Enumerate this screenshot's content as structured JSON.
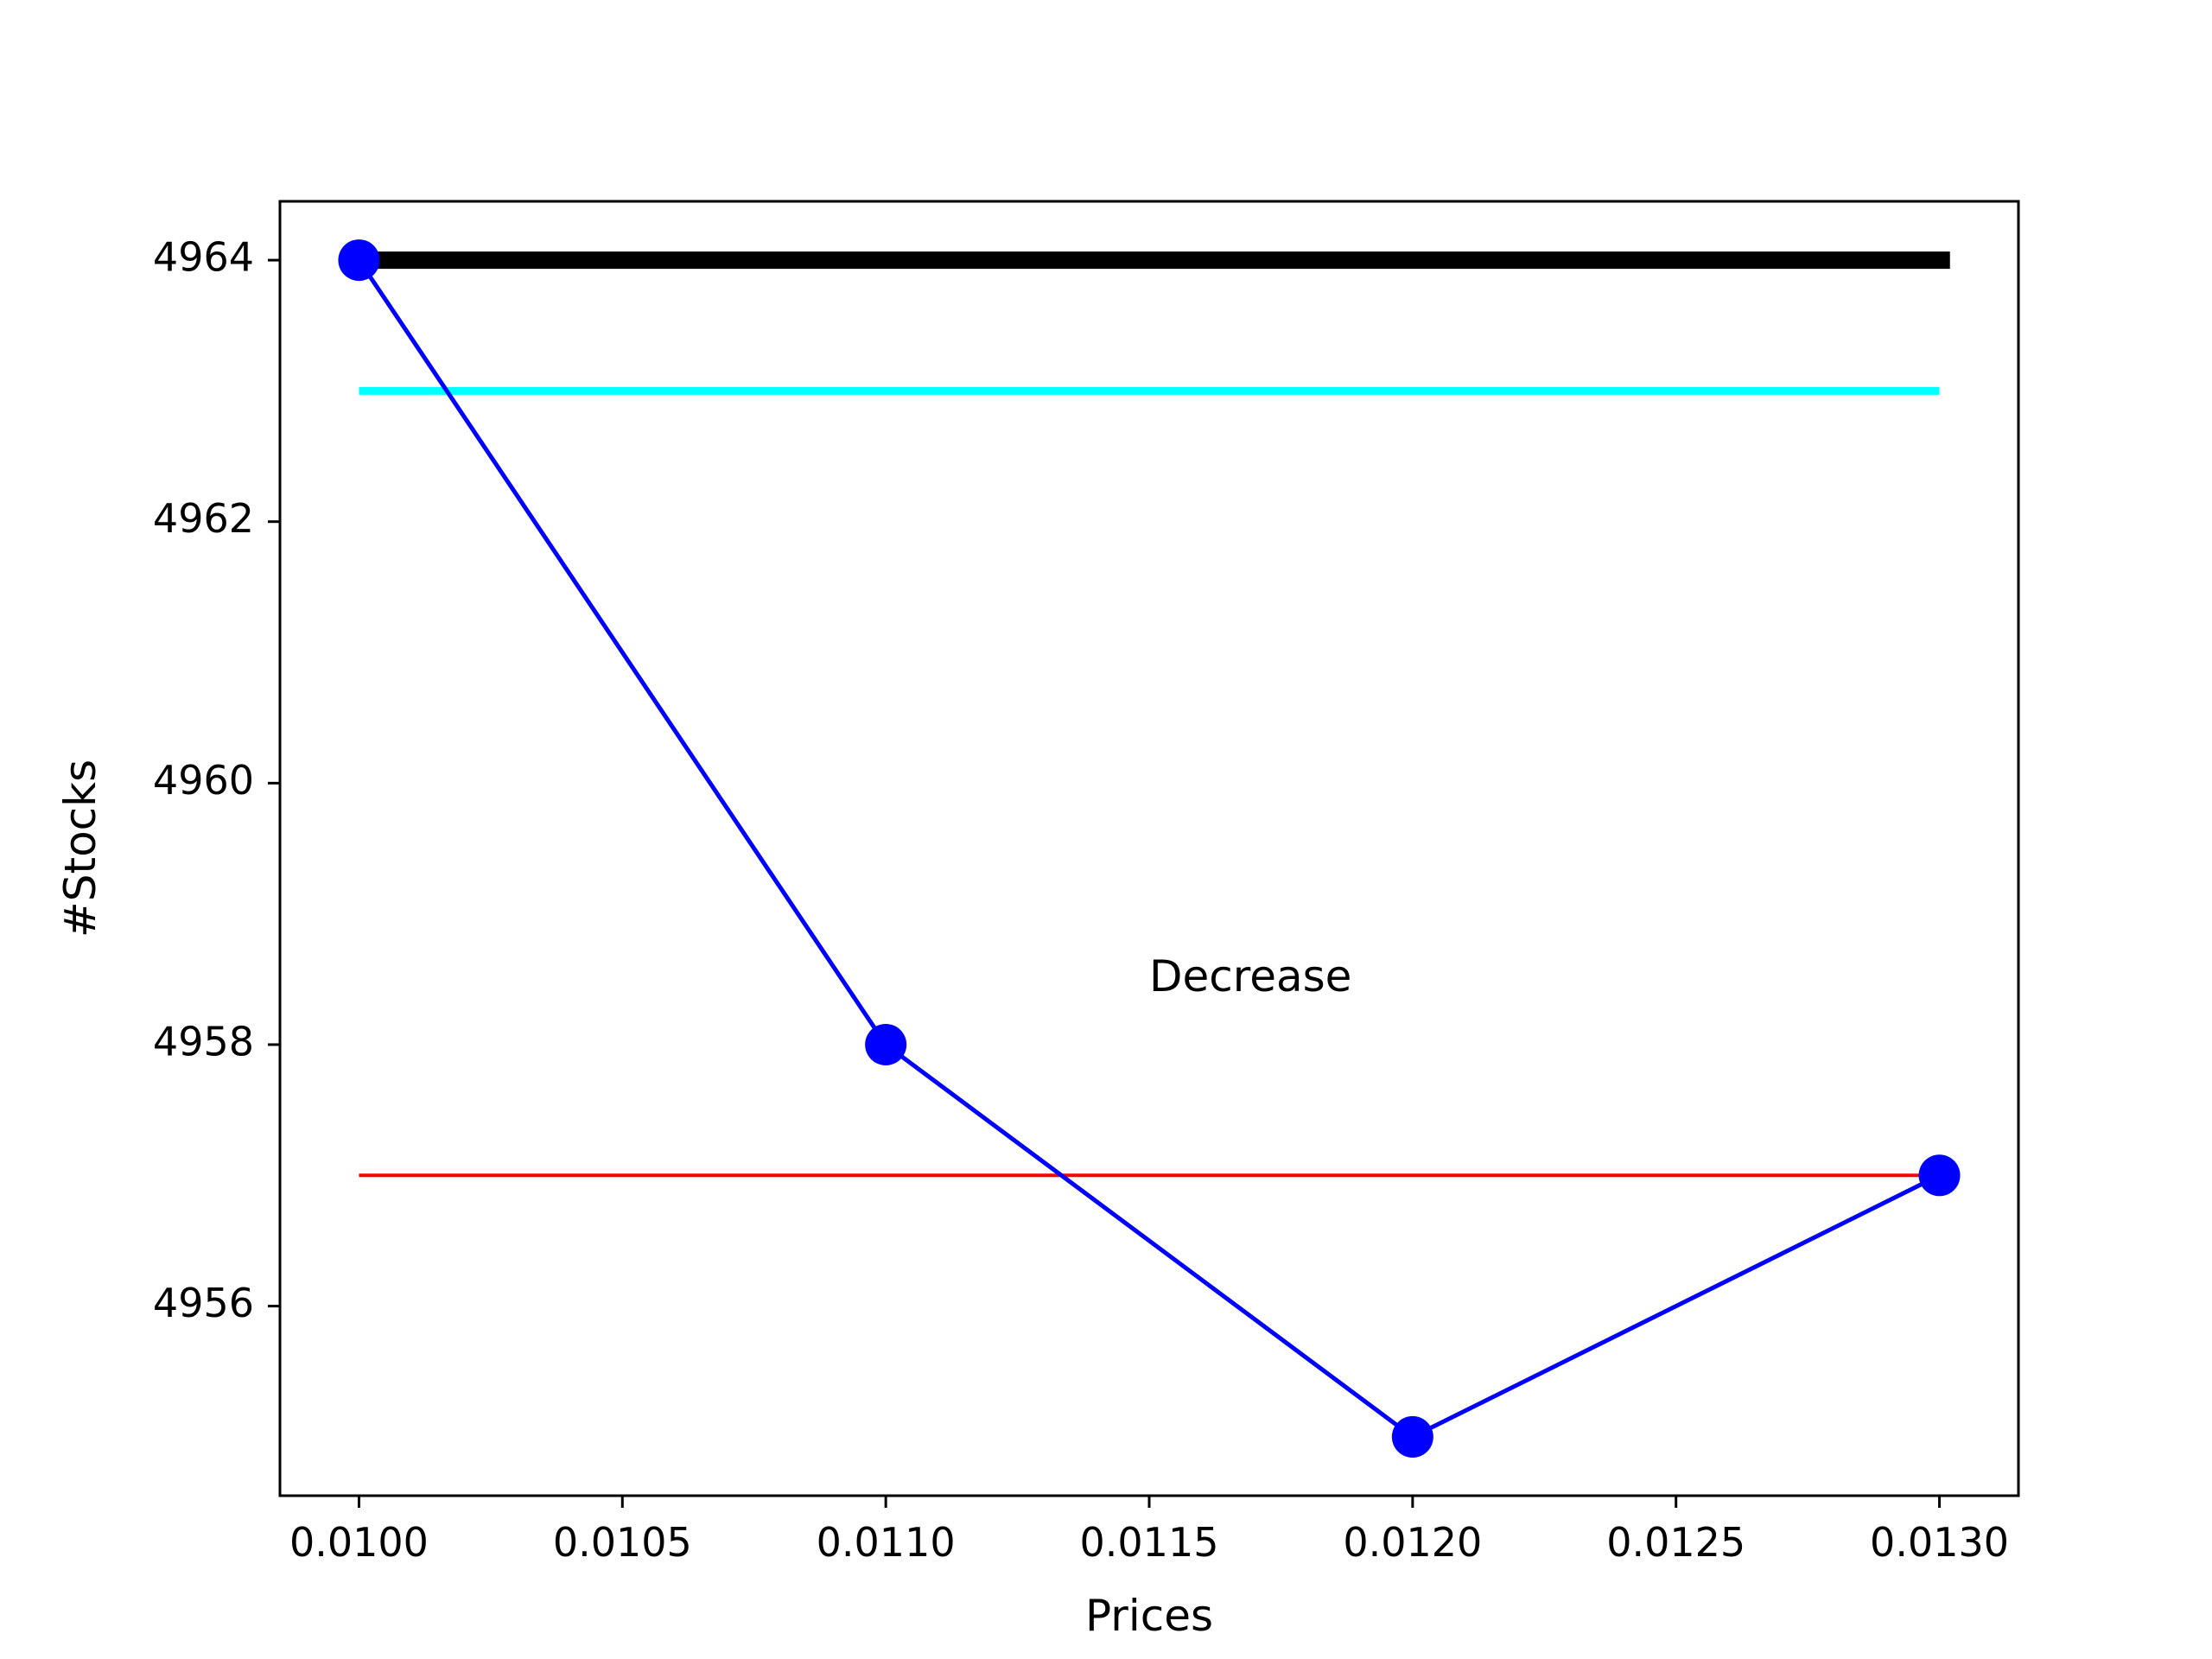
{
  "chart_data": {
    "type": "line",
    "title": "",
    "xlabel": "Prices",
    "ylabel": "#Stocks",
    "xlim": [
      0.00985,
      0.01315
    ],
    "ylim": [
      4954.55,
      4964.45
    ],
    "grid": false,
    "x_ticks": [
      0.01,
      0.0105,
      0.011,
      0.0115,
      0.012,
      0.0125,
      0.013
    ],
    "x_tick_labels": [
      "0.0100",
      "0.0105",
      "0.0110",
      "0.0115",
      "0.0120",
      "0.0125",
      "0.0130"
    ],
    "y_ticks": [
      4956,
      4958,
      4960,
      4962,
      4964
    ],
    "y_tick_labels": [
      "4956",
      "4958",
      "4960",
      "4962",
      "4964"
    ],
    "series": [
      {
        "kind": "line-markers",
        "color": "#0000ff",
        "x": [
          0.01,
          0.011,
          0.012,
          0.013
        ],
        "y": [
          4964,
          4958,
          4955,
          4957
        ]
      }
    ],
    "reference_lines": [
      {
        "y": 4964,
        "x_start": 0.01,
        "x_end": 0.01302,
        "color": "#000000",
        "weight": "thick"
      },
      {
        "y": 4963,
        "x_start": 0.01,
        "x_end": 0.013,
        "color": "#00ffff",
        "weight": "medium"
      },
      {
        "y": 4957,
        "x_start": 0.01,
        "x_end": 0.013,
        "color": "#ff0000",
        "weight": "thin"
      }
    ],
    "annotations": [
      {
        "text": "Decrease",
        "x": 0.0115,
        "y": 4958.5
      }
    ]
  }
}
